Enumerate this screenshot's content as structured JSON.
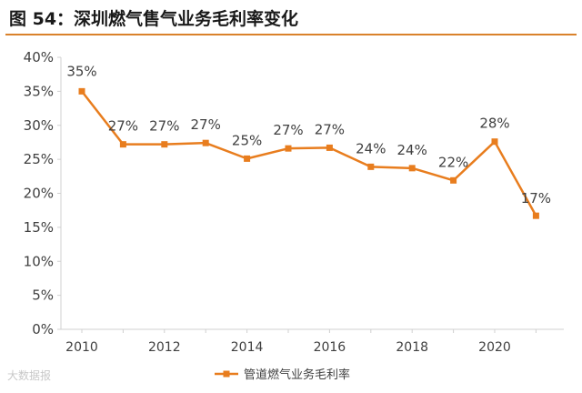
{
  "header": {
    "title": "图 54：深圳燃气售气业务毛利率变化"
  },
  "watermark": "大数据报",
  "colors": {
    "line": "#E87D1E",
    "axis": "#d0d0d0",
    "text": "#404040",
    "rule": "#d9822b"
  },
  "chart_data": {
    "type": "line",
    "title": "",
    "xlabel": "",
    "ylabel": "",
    "x": [
      2010,
      2011,
      2012,
      2013,
      2014,
      2015,
      2016,
      2017,
      2018,
      2019,
      2020,
      2021
    ],
    "x_tick_labels": [
      "2010",
      "2012",
      "2014",
      "2016",
      "2018",
      "2020"
    ],
    "y_tick_labels": [
      "0%",
      "5%",
      "10%",
      "15%",
      "20%",
      "25%",
      "30%",
      "35%",
      "40%"
    ],
    "ylim": [
      0,
      40
    ],
    "grid": false,
    "legend_position": "bottom",
    "series": [
      {
        "name": "管道燃气业务毛利率",
        "values": [
          35,
          27.2,
          27.2,
          27.4,
          25.1,
          26.6,
          26.7,
          23.9,
          23.7,
          21.9,
          27.6,
          16.7
        ],
        "labels": [
          "35%",
          "27%",
          "27%",
          "27%",
          "25%",
          "27%",
          "27%",
          "24%",
          "24%",
          "22%",
          "28%",
          "17%"
        ]
      }
    ]
  }
}
